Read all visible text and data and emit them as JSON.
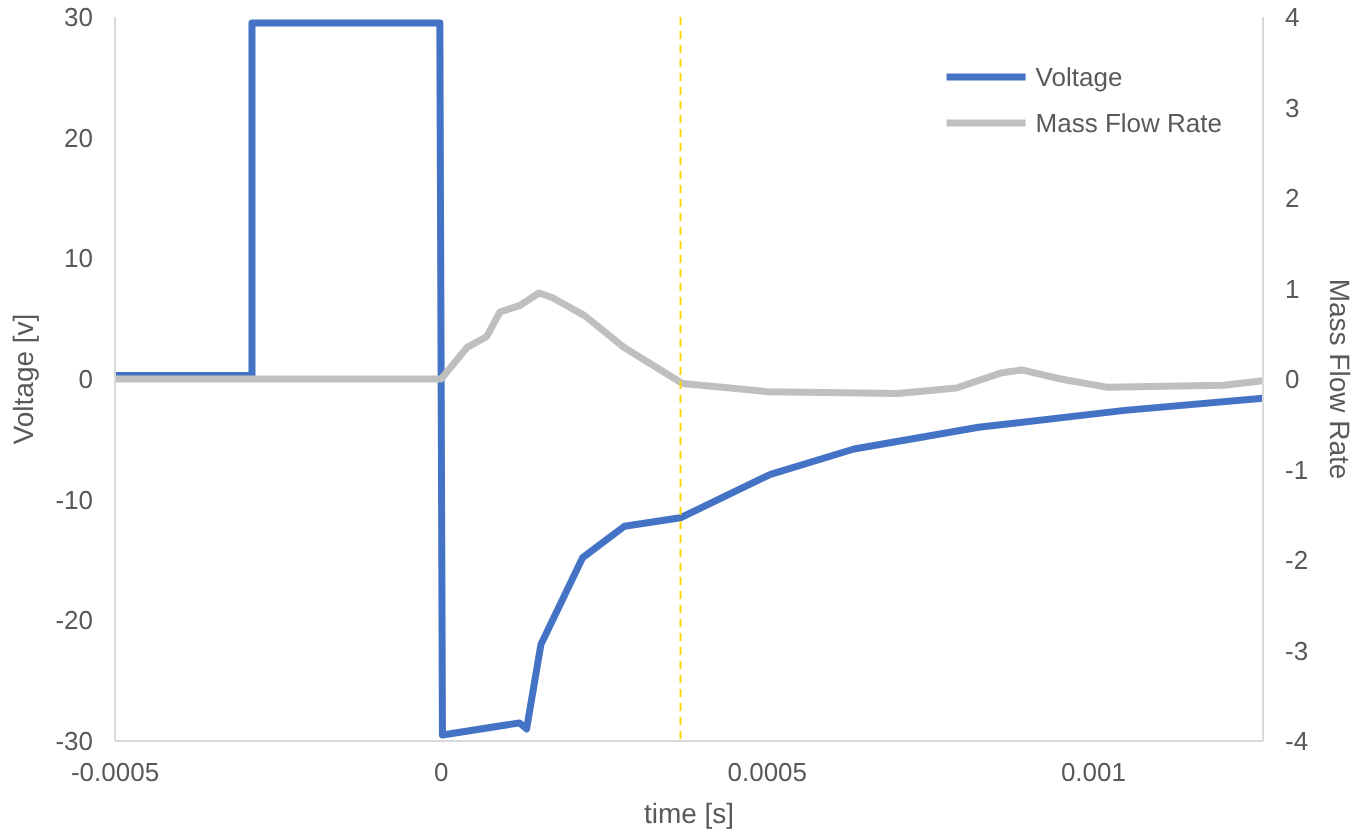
{
  "chart_data": {
    "type": "line",
    "xlabel": "time [s]",
    "ylabel": "Voltage [v]",
    "y2label": "Mass Flow Rate",
    "xlim": [
      -0.0005,
      0.00126
    ],
    "xticks": [
      -0.0005,
      0,
      0.0005,
      0.001
    ],
    "ylim": [
      -30,
      30
    ],
    "yticks": [
      -30,
      -20,
      -10,
      0,
      10,
      20,
      30
    ],
    "y2lim": [
      -4,
      4
    ],
    "y2ticks": [
      -4,
      -3,
      -2,
      -1,
      0,
      1,
      2,
      3,
      4
    ],
    "grid": false,
    "legend": "top right",
    "marker": "none",
    "line_style": "solid",
    "ref_lines": [
      {
        "axis": "x",
        "value": 0.000367,
        "label": null,
        "color": "#ffd700",
        "line_style": "dashed"
      }
    ],
    "series": [
      {
        "name": "Voltage",
        "color": "#4472c4",
        "x": [
          -0.0005,
          -0.00029,
          -0.00029,
          -2e-06,
          2e-06,
          0.00012,
          0.000131,
          0.000153,
          0.000217,
          0.000281,
          0.000367,
          0.000505,
          0.000633,
          0.000824,
          0.001048,
          0.00126
        ],
        "values": [
          0.3,
          0.3,
          29.5,
          29.5,
          -29.5,
          -28.5,
          -29,
          -22,
          -14.8,
          -12.2,
          -11.5,
          -7.9,
          -5.8,
          -4,
          -2.6,
          -1.6
        ]
      },
      {
        "name": "Mass Flow Rate",
        "color": "#bfbfbf",
        "axis": "y2",
        "x": [
          -0.0005,
          0,
          4e-05,
          7e-05,
          9e-05,
          0.00012,
          0.00015,
          0.00017,
          0.00022,
          0.00028,
          0.00037,
          0.0005,
          0.0007,
          0.00079,
          0.00086,
          0.00089,
          0.00095,
          0.00102,
          0.0012,
          0.00126
        ],
        "values": [
          0,
          0,
          0.35,
          0.47,
          0.74,
          0.81,
          0.95,
          0.9,
          0.7,
          0.35,
          -0.05,
          -0.14,
          -0.16,
          -0.1,
          0.07,
          0.1,
          0,
          -0.09,
          -0.07,
          -0.02
        ]
      }
    ]
  }
}
